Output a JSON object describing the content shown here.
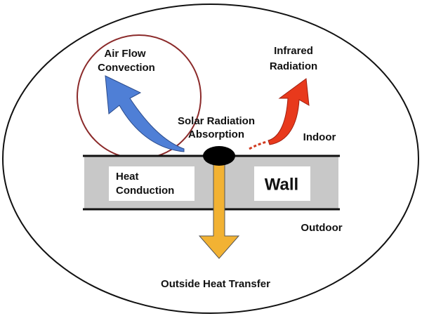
{
  "diagram": {
    "air_flow": [
      "Air Flow",
      "Convection"
    ],
    "infrared": [
      "Infrared",
      "Radiation"
    ],
    "solar": [
      "Solar Radiation",
      "Absorption"
    ],
    "indoor": "Indoor",
    "heat_conduction": [
      "Heat",
      "Conduction"
    ],
    "wall": "Wall",
    "outdoor": "Outdoor",
    "outside": "Outside Heat Transfer"
  }
}
